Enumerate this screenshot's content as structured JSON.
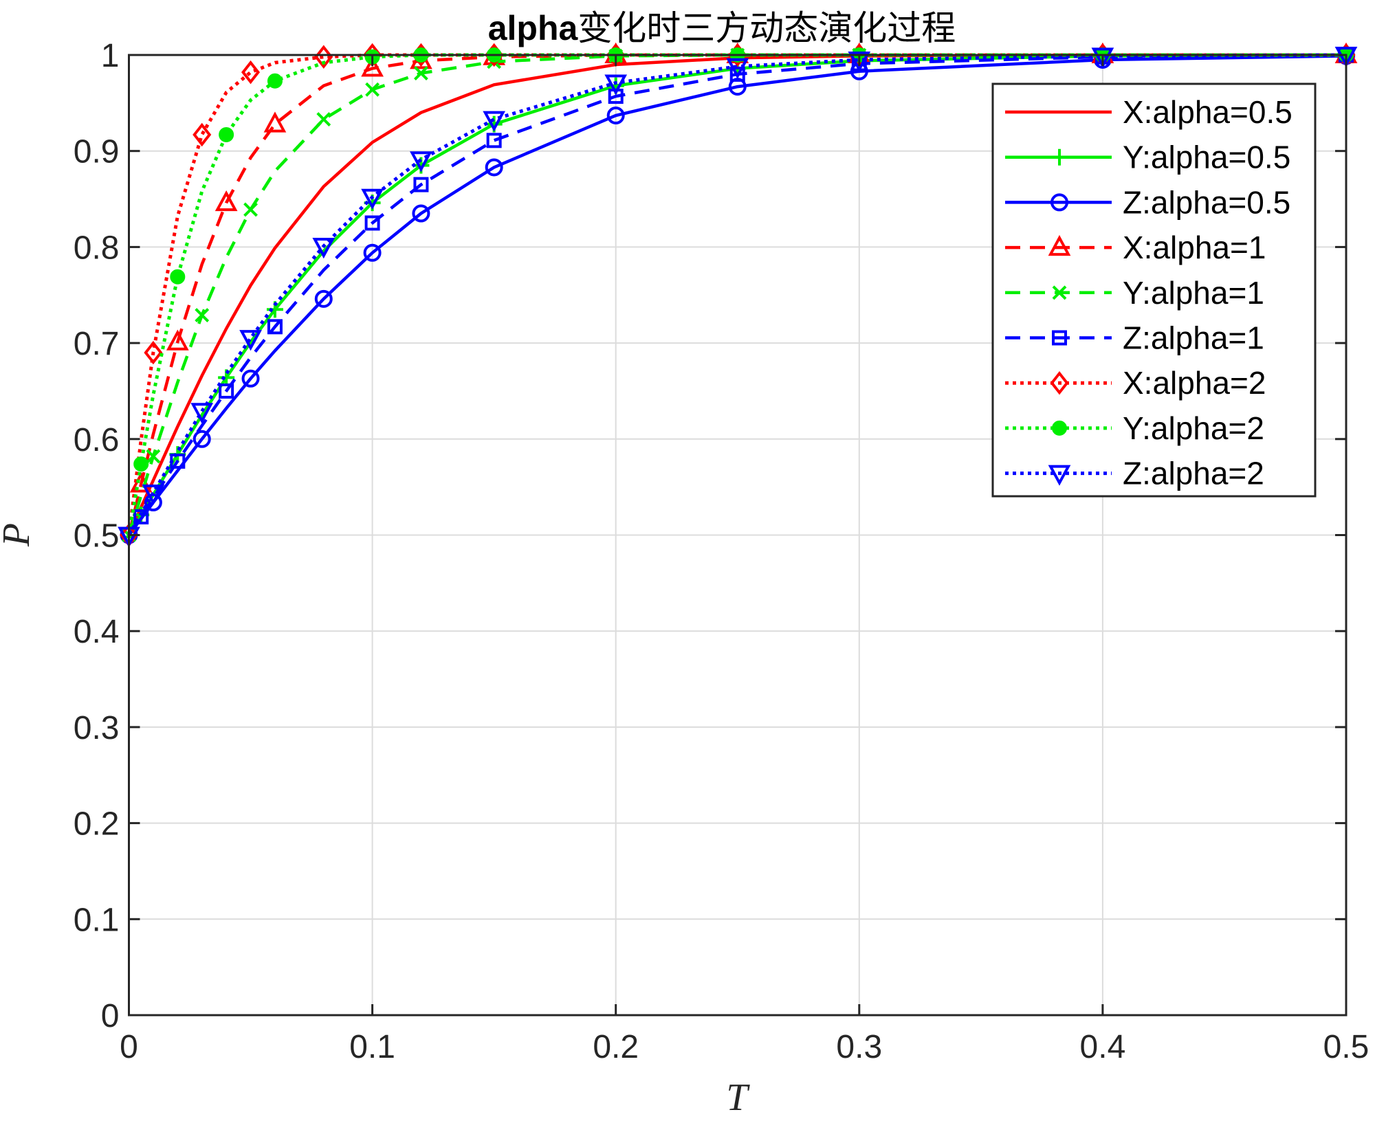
{
  "chart_data": {
    "type": "line",
    "title_bold": "alpha",
    "title_rest": "变化时三方动态演化过程",
    "xlabel": "T",
    "ylabel": "P",
    "xlim": [
      0,
      0.5
    ],
    "ylim": [
      0,
      1
    ],
    "grid": true,
    "legend_position": "top-right",
    "xticks": [
      "0",
      "0.1",
      "0.2",
      "0.3",
      "0.4",
      "0.5"
    ],
    "yticks": [
      "0",
      "0.1",
      "0.2",
      "0.3",
      "0.4",
      "0.5",
      "0.6",
      "0.7",
      "0.8",
      "0.9",
      "1"
    ],
    "x": [
      0,
      0.005,
      0.01,
      0.02,
      0.03,
      0.04,
      0.05,
      0.06,
      0.08,
      0.1,
      0.12,
      0.15,
      0.2,
      0.25,
      0.3,
      0.4,
      0.5
    ],
    "series": [
      {
        "name": "X:alpha=0.5",
        "color": "#ff0000",
        "style": "solid",
        "marker": "none",
        "values": [
          0.5,
          0.529,
          0.557,
          0.613,
          0.666,
          0.715,
          0.76,
          0.799,
          0.863,
          0.909,
          0.94,
          0.969,
          0.99,
          0.997,
          0.999,
          1.0,
          1.0
        ]
      },
      {
        "name": "Y:alpha=0.5",
        "color": "#00ee00",
        "style": "solid",
        "marker": "plus",
        "values": [
          0.5,
          0.521,
          0.542,
          0.584,
          0.625,
          0.664,
          0.701,
          0.735,
          0.796,
          0.846,
          0.885,
          0.928,
          0.968,
          0.986,
          0.994,
          0.999,
          1.0
        ]
      },
      {
        "name": "Z:alpha=0.5",
        "color": "#0000ff",
        "style": "solid",
        "marker": "circle",
        "values": [
          0.5,
          0.517,
          0.534,
          0.567,
          0.6,
          0.632,
          0.663,
          0.692,
          0.746,
          0.794,
          0.835,
          0.883,
          0.937,
          0.967,
          0.983,
          0.995,
          0.999
        ]
      },
      {
        "name": "X:alpha=1",
        "color": "#ff0000",
        "style": "dashed",
        "marker": "triangle-up",
        "values": [
          0.5,
          0.553,
          0.605,
          0.701,
          0.782,
          0.846,
          0.893,
          0.928,
          0.968,
          0.986,
          0.994,
          0.998,
          1.0,
          1.0,
          1.0,
          1.0,
          1.0
        ]
      },
      {
        "name": "Y:alpha=1",
        "color": "#00ee00",
        "style": "dashed",
        "marker": "x",
        "values": [
          0.5,
          0.541,
          0.582,
          0.659,
          0.729,
          0.789,
          0.839,
          0.879,
          0.933,
          0.964,
          0.981,
          0.993,
          0.999,
          1.0,
          1.0,
          1.0,
          1.0
        ]
      },
      {
        "name": "Z:alpha=1",
        "color": "#0000ff",
        "style": "dashed",
        "marker": "square",
        "values": [
          0.5,
          0.519,
          0.539,
          0.577,
          0.614,
          0.65,
          0.685,
          0.717,
          0.776,
          0.825,
          0.865,
          0.911,
          0.957,
          0.98,
          0.991,
          0.998,
          1.0
        ]
      },
      {
        "name": "X:alpha=2",
        "color": "#ff0000",
        "style": "dotted",
        "marker": "diamond",
        "values": [
          0.5,
          0.599,
          0.69,
          0.832,
          0.917,
          0.961,
          0.982,
          0.992,
          0.998,
          1.0,
          1.0,
          1.0,
          1.0,
          1.0,
          1.0,
          1.0,
          1.0
        ]
      },
      {
        "name": "Y:alpha=2",
        "color": "#00ee00",
        "style": "dotted",
        "marker": "asterisk",
        "values": [
          0.5,
          0.574,
          0.646,
          0.769,
          0.858,
          0.917,
          0.953,
          0.973,
          0.992,
          0.998,
          1.0,
          1.0,
          1.0,
          1.0,
          1.0,
          1.0,
          1.0
        ]
      },
      {
        "name": "Z:alpha=2",
        "color": "#0000ff",
        "style": "dotted",
        "marker": "triangle-down",
        "values": [
          0.5,
          0.522,
          0.544,
          0.587,
          0.629,
          0.668,
          0.705,
          0.74,
          0.801,
          0.852,
          0.891,
          0.933,
          0.971,
          0.988,
          0.995,
          0.999,
          1.0
        ]
      }
    ]
  }
}
